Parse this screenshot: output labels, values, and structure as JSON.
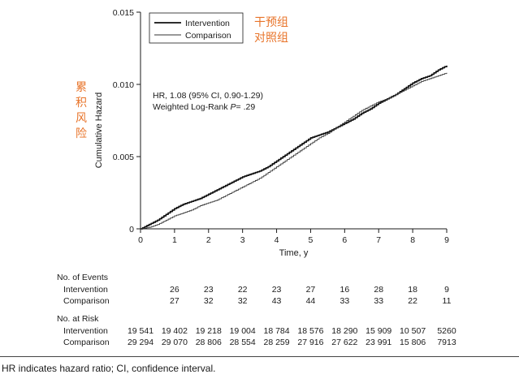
{
  "chart_data": {
    "type": "line",
    "xlabel": "Time, y",
    "ylabel": "Cumulative Hazard",
    "xlim": [
      0,
      9
    ],
    "ylim": [
      0,
      0.015
    ],
    "x_ticks": [
      "0",
      "1",
      "2",
      "3",
      "4",
      "5",
      "6",
      "7",
      "8",
      "9"
    ],
    "y_ticks": [
      "0",
      "0.005",
      "0.010",
      "0.015"
    ],
    "legend": {
      "position": "top-left",
      "entries": [
        "Intervention",
        "Comparison"
      ]
    },
    "series": [
      {
        "name": "Intervention",
        "x": [
          0,
          0.25,
          0.5,
          0.75,
          1.0,
          1.25,
          1.5,
          1.75,
          2.0,
          2.25,
          2.5,
          2.75,
          3.0,
          3.25,
          3.5,
          3.75,
          4.0,
          4.25,
          4.5,
          4.75,
          5.0,
          5.25,
          5.5,
          5.75,
          6.0,
          6.25,
          6.5,
          6.75,
          7.0,
          7.25,
          7.5,
          7.75,
          8.0,
          8.25,
          8.5,
          8.75,
          9.0
        ],
        "values": [
          0,
          0.0003,
          0.0006,
          0.001,
          0.0014,
          0.0017,
          0.0019,
          0.0021,
          0.0024,
          0.0027,
          0.003,
          0.0033,
          0.0036,
          0.0038,
          0.004,
          0.0043,
          0.0047,
          0.0051,
          0.0055,
          0.0059,
          0.0063,
          0.0065,
          0.0067,
          0.007,
          0.0073,
          0.0076,
          0.008,
          0.0083,
          0.0087,
          0.009,
          0.0093,
          0.0097,
          0.0101,
          0.0104,
          0.0106,
          0.011,
          0.0113
        ]
      },
      {
        "name": "Comparison",
        "x": [
          0,
          0.25,
          0.5,
          0.75,
          1.0,
          1.25,
          1.5,
          1.75,
          2.0,
          2.25,
          2.5,
          2.75,
          3.0,
          3.25,
          3.5,
          3.75,
          4.0,
          4.25,
          4.5,
          4.75,
          5.0,
          5.25,
          5.5,
          5.75,
          6.0,
          6.25,
          6.5,
          6.75,
          7.0,
          7.25,
          7.5,
          7.75,
          8.0,
          8.25,
          8.5,
          8.75,
          9.0
        ],
        "values": [
          0,
          0.0001,
          0.0003,
          0.0006,
          0.0009,
          0.0011,
          0.0013,
          0.0016,
          0.0018,
          0.002,
          0.0023,
          0.0026,
          0.0029,
          0.0032,
          0.0035,
          0.0039,
          0.0043,
          0.0047,
          0.0051,
          0.0055,
          0.0059,
          0.0063,
          0.0066,
          0.007,
          0.0074,
          0.0078,
          0.0082,
          0.0085,
          0.0088,
          0.009,
          0.0093,
          0.0096,
          0.0099,
          0.0102,
          0.0104,
          0.0106,
          0.0108
        ]
      }
    ],
    "annotations": {
      "hr_line": "HR, 1.08 (95% CI, 0.90-1.29)",
      "test_prefix": "Weighted Log-Rank ",
      "test_p": "P",
      "test_suffix": "= .29"
    },
    "chinese_notes": {
      "legend": [
        "干预组",
        "对照组"
      ],
      "ylabel": [
        "累",
        "积",
        "风",
        "险"
      ]
    },
    "events_table": {
      "title": "No. of Events",
      "columns_x": [
        1,
        2,
        3,
        4,
        5,
        6,
        7,
        8,
        9
      ],
      "rows": [
        {
          "label": "Intervention",
          "values": [
            "26",
            "23",
            "22",
            "23",
            "27",
            "16",
            "28",
            "18",
            "9"
          ]
        },
        {
          "label": "Comparison",
          "values": [
            "27",
            "32",
            "32",
            "43",
            "44",
            "33",
            "33",
            "22",
            "11"
          ]
        }
      ]
    },
    "risk_table": {
      "title": "No. at Risk",
      "columns_x": [
        0,
        1,
        2,
        3,
        4,
        5,
        6,
        7,
        8,
        9
      ],
      "rows": [
        {
          "label": "Intervention",
          "values": [
            "19 541",
            "19 402",
            "19 218",
            "19 004",
            "18 784",
            "18 576",
            "18 290",
            "15 909",
            "10 507",
            "5260"
          ]
        },
        {
          "label": "Comparison",
          "values": [
            "29 294",
            "29 070",
            "28 806",
            "28 554",
            "28 259",
            "27 916",
            "27 622",
            "23 991",
            "15 806",
            "7913"
          ]
        }
      ]
    }
  },
  "caption": "HR indicates hazard ratio; CI, confidence interval."
}
